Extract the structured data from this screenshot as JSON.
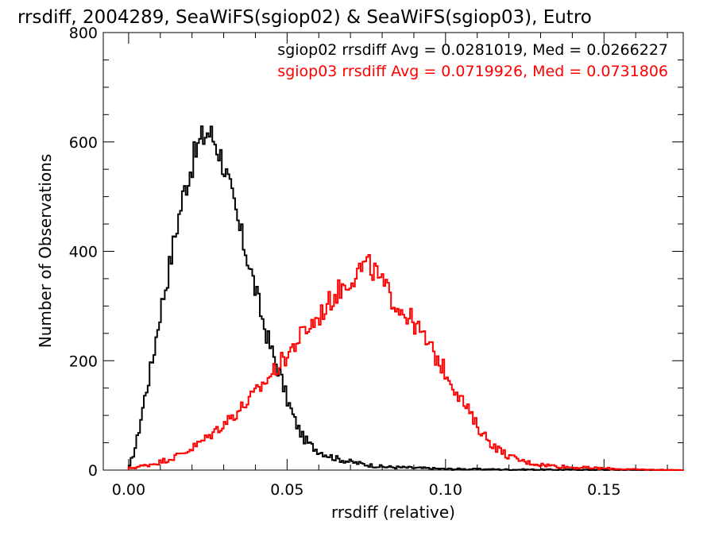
{
  "chart_data": {
    "type": "line",
    "title": "rrsdiff, 2004289, SeaWiFS(sgiop02) & SeaWiFS(sgiop03), Eutro",
    "xlabel": "rrsdiff (relative)",
    "ylabel": "Number of Observations",
    "xlim": [
      -0.008,
      0.175
    ],
    "ylim": [
      0,
      800
    ],
    "x_ticks": [
      0.0,
      0.05,
      0.1,
      0.15
    ],
    "x_tick_labels": [
      "0.00",
      "0.05",
      "0.10",
      "0.15"
    ],
    "y_ticks": [
      0,
      200,
      400,
      600,
      800
    ],
    "y_tick_labels": [
      "0",
      "200",
      "400",
      "600",
      "800"
    ],
    "grid": false,
    "legend_position": "top-right",
    "annotations": [
      {
        "text": "sgiop02 rrsdiff Avg = 0.0281019, Med = 0.0266227",
        "color": "#000000"
      },
      {
        "text": "sgiop03 rrsdiff Avg = 0.0719926, Med = 0.0731806",
        "color": "#ff0000"
      }
    ],
    "series": [
      {
        "name": "sgiop02",
        "color": "#000000",
        "x": [
          0.0,
          0.0025,
          0.005,
          0.0075,
          0.01,
          0.0125,
          0.015,
          0.0175,
          0.02,
          0.0225,
          0.025,
          0.0275,
          0.03,
          0.0325,
          0.035,
          0.0375,
          0.04,
          0.0425,
          0.045,
          0.0475,
          0.05,
          0.0525,
          0.055,
          0.0575,
          0.06,
          0.065,
          0.07,
          0.075,
          0.08,
          0.09,
          0.1,
          0.12,
          0.175
        ],
        "y": [
          0,
          50,
          130,
          200,
          290,
          360,
          440,
          510,
          560,
          600,
          620,
          600,
          560,
          500,
          440,
          390,
          330,
          270,
          220,
          180,
          130,
          90,
          60,
          45,
          35,
          22,
          15,
          10,
          6,
          4,
          2,
          1,
          0
        ]
      },
      {
        "name": "sgiop03",
        "color": "#ff0000",
        "x": [
          0.0,
          0.005,
          0.01,
          0.015,
          0.02,
          0.025,
          0.03,
          0.035,
          0.04,
          0.045,
          0.05,
          0.055,
          0.06,
          0.065,
          0.07,
          0.0725,
          0.075,
          0.0775,
          0.08,
          0.085,
          0.09,
          0.095,
          0.1,
          0.105,
          0.11,
          0.115,
          0.12,
          0.125,
          0.13,
          0.14,
          0.15,
          0.16,
          0.175
        ],
        "y": [
          3,
          8,
          15,
          25,
          40,
          60,
          85,
          110,
          140,
          175,
          210,
          250,
          280,
          320,
          350,
          365,
          375,
          365,
          340,
          300,
          270,
          225,
          180,
          130,
          80,
          45,
          25,
          15,
          10,
          5,
          3,
          1,
          0
        ]
      }
    ]
  }
}
